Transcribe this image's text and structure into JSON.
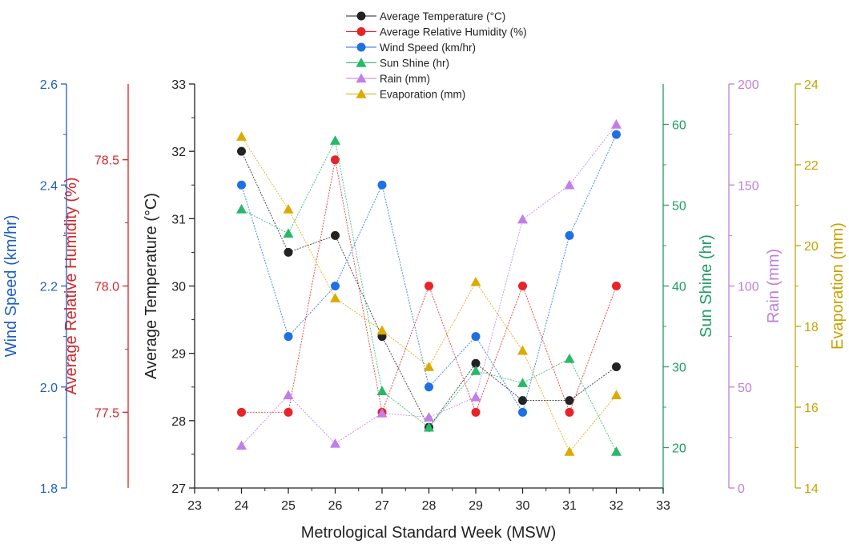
{
  "chart_data": {
    "type": "line",
    "xlabel": "Metrological Standard Week (MSW)",
    "xlim": [
      23,
      33
    ],
    "xticks": [
      "23",
      "24",
      "25",
      "26",
      "27",
      "28",
      "29",
      "30",
      "31",
      "32",
      "33"
    ],
    "x": [
      24,
      25,
      26,
      27,
      28,
      29,
      30,
      31,
      32
    ],
    "legend_position": "top-center",
    "axes": [
      {
        "id": "temp",
        "label": "Average Temperature (°C)",
        "ylim": [
          27,
          33
        ],
        "ticks": [
          "27",
          "28",
          "29",
          "30",
          "31",
          "32",
          "33"
        ],
        "color": "#222222",
        "side": "left"
      },
      {
        "id": "hum",
        "label": "Average Relative Humidity (%)",
        "ylim": [
          77.2,
          78.8
        ],
        "ticks": [
          "77.5",
          "78.0",
          "78.5"
        ],
        "color": "#d62728",
        "side": "left"
      },
      {
        "id": "wind",
        "label": "Wind Speed (km/hr)",
        "ylim": [
          1.8,
          2.6
        ],
        "ticks": [
          "1.8",
          "2.0",
          "2.2",
          "2.4",
          "2.6"
        ],
        "color": "#1f5fbf",
        "side": "left"
      },
      {
        "id": "sun",
        "label": "Sun Shine (hr)",
        "ylim": [
          15,
          65
        ],
        "ticks": [
          "20",
          "30",
          "40",
          "50",
          "60"
        ],
        "color": "#1f9e63",
        "side": "right"
      },
      {
        "id": "rain",
        "label": "Rain (mm)",
        "ylim": [
          0,
          200
        ],
        "ticks": [
          "0",
          "50",
          "100",
          "150",
          "200"
        ],
        "color": "#c07fd8",
        "side": "right"
      },
      {
        "id": "evap",
        "label": "Evaporation (mm)",
        "ylim": [
          14,
          24
        ],
        "ticks": [
          "14",
          "16",
          "18",
          "20",
          "22",
          "24"
        ],
        "color": "#c9a100",
        "side": "right"
      }
    ],
    "series": [
      {
        "name": "Average Temperature (°C)",
        "axis": "temp",
        "marker": "circle",
        "color": "#222222",
        "values": [
          32.0,
          30.5,
          30.75,
          29.25,
          27.9,
          28.85,
          28.3,
          28.3,
          28.8
        ]
      },
      {
        "name": "Average Relative Humidity (%)",
        "axis": "hum",
        "marker": "circle",
        "color": "#e8232a",
        "values": [
          77.5,
          77.5,
          78.5,
          77.5,
          78.0,
          77.5,
          78.0,
          77.5,
          78.0
        ]
      },
      {
        "name": "Wind Speed (km/hr)",
        "axis": "wind",
        "marker": "circle",
        "color": "#1f6fe5",
        "values": [
          2.4,
          2.1,
          2.2,
          2.4,
          2.0,
          2.1,
          1.95,
          2.3,
          2.5
        ]
      },
      {
        "name": "Sun Shine (hr)",
        "axis": "sun",
        "marker": "triangle",
        "color": "#27b86a",
        "values": [
          49.5,
          46.5,
          58.0,
          27.0,
          22.5,
          29.5,
          28.0,
          31.0,
          19.5
        ]
      },
      {
        "name": "Rain (mm)",
        "axis": "rain",
        "marker": "triangle",
        "color": "#c17ee8",
        "values": [
          21.0,
          46.0,
          22.0,
          37.0,
          35.0,
          45.0,
          133.0,
          150.0,
          180.0
        ]
      },
      {
        "name": "Evaporation (mm)",
        "axis": "evap",
        "marker": "triangle",
        "color": "#dcaa00",
        "values": [
          22.7,
          20.9,
          18.7,
          17.9,
          17.0,
          19.1,
          17.4,
          14.9,
          16.3
        ]
      }
    ]
  }
}
